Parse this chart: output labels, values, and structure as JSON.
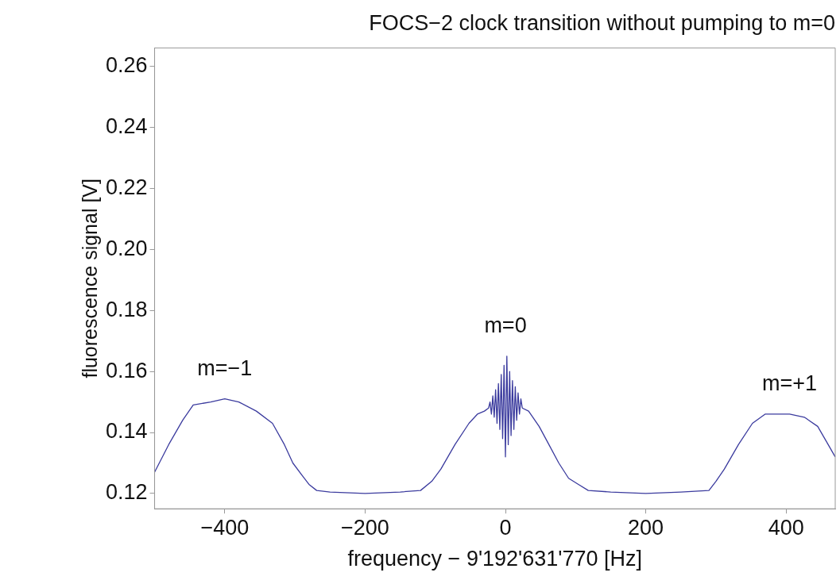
{
  "chart_data": {
    "type": "line",
    "title": "FOCS−2 clock transition without pumping to m=0",
    "xlabel": "frequency − 9'192'631'770 [Hz]",
    "ylabel": "fluorescence signal [V]",
    "x": [
      -500,
      -480,
      -460,
      -445,
      -420,
      -400,
      -380,
      -355,
      -332,
      -315,
      -303,
      -290,
      -280,
      -269,
      -250,
      -200,
      -150,
      -121,
      -105,
      -92,
      -72,
      -52,
      -40,
      -30,
      -24,
      -22,
      -20,
      -18,
      -16,
      -14,
      -12,
      -10,
      -8,
      -6,
      -4,
      -2,
      0,
      2,
      4,
      6,
      8,
      10,
      12,
      14,
      16,
      18,
      20,
      22,
      24,
      33,
      48,
      62,
      76,
      90,
      104,
      118,
      150,
      200,
      250,
      290,
      300,
      312,
      332,
      352,
      370,
      386,
      405,
      426,
      445,
      460,
      470
    ],
    "series": [
      {
        "color": "#3b3b9e",
        "values": [
          0.127,
          0.136,
          0.144,
          0.149,
          0.15,
          0.151,
          0.15,
          0.147,
          0.143,
          0.136,
          0.13,
          0.126,
          0.123,
          0.121,
          0.1205,
          0.12,
          0.1205,
          0.121,
          0.124,
          0.128,
          0.136,
          0.143,
          0.146,
          0.147,
          0.148,
          0.15,
          0.146,
          0.152,
          0.145,
          0.154,
          0.143,
          0.156,
          0.141,
          0.159,
          0.138,
          0.162,
          0.132,
          0.165,
          0.136,
          0.16,
          0.139,
          0.157,
          0.141,
          0.155,
          0.144,
          0.153,
          0.146,
          0.151,
          0.148,
          0.147,
          0.142,
          0.136,
          0.13,
          0.125,
          0.123,
          0.121,
          0.1205,
          0.12,
          0.1205,
          0.121,
          0.124,
          0.128,
          0.136,
          0.143,
          0.146,
          0.146,
          0.146,
          0.145,
          0.142,
          0.136,
          0.132
        ]
      }
    ],
    "xlim": [
      -500,
      470
    ],
    "ylim": [
      0.115,
      0.266
    ],
    "xticks": [
      {
        "value": -400,
        "label": "−400"
      },
      {
        "value": -200,
        "label": "−200"
      },
      0,
      200,
      400
    ],
    "yticks": [
      {
        "value": 0.12,
        "label": "0.12"
      },
      {
        "value": 0.14,
        "label": "0.14"
      },
      {
        "value": 0.16,
        "label": "0.16"
      },
      {
        "value": 0.18,
        "label": "0.18"
      },
      {
        "value": 0.2,
        "label": "0.20"
      },
      {
        "value": 0.22,
        "label": "0.22"
      },
      {
        "value": 0.24,
        "label": "0.24"
      },
      {
        "value": 0.26,
        "label": "0.26"
      }
    ],
    "annotations": [
      {
        "text": "m=−1",
        "x": -400,
        "y": 0.151
      },
      {
        "text": "m=0",
        "x": 0,
        "y": 0.165
      },
      {
        "text": "m=+1",
        "x": 405,
        "y": 0.146
      }
    ],
    "grid": false,
    "legend": false,
    "marker": "none",
    "line_style": "solid"
  }
}
